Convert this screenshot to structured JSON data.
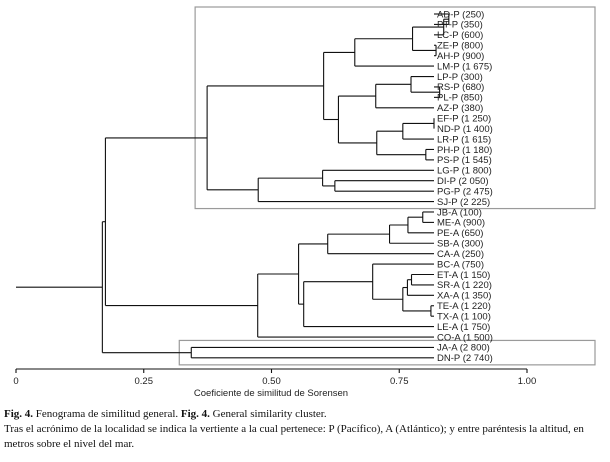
{
  "chart_data": {
    "type": "dendrogram",
    "xlabel": "Coeficiente de similitud de Sorensen",
    "xlim": [
      0,
      1
    ],
    "xticks": [
      {
        "value": 0,
        "label": "0"
      },
      {
        "value": 0.25,
        "label": "0.25"
      },
      {
        "value": 0.5,
        "label": "0.50"
      },
      {
        "value": 0.75,
        "label": "0.75"
      },
      {
        "value": 1,
        "label": "1.00"
      }
    ],
    "leaves": [
      "AD-P (250)",
      "PT-P (350)",
      "LC-P (600)",
      "ZE-P (800)",
      "AH-P (900)",
      "LM-P (1 675)",
      "LP-P (300)",
      "RS-P (680)",
      "PL-P (850)",
      "AZ-P (380)",
      "EF-P (1 250)",
      "ND-P (1 400)",
      "LR-P (1 615)",
      "PH-P (1 180)",
      "PS-P (1 545)",
      "LG-P (1 800)",
      "DI-P (2 050)",
      "PG-P (2 475)",
      "SJ-P (2 225)",
      "JB-A (100)",
      "ME-A (900)",
      "PE-A (650)",
      "SB-A (300)",
      "CA-A (250)",
      "BC-A (750)",
      "ET-A (1 150)",
      "SR-A (1 220)",
      "XA-A (1 350)",
      "TE-A (1 220)",
      "TX-A (1 100)",
      "LE-A (1 750)",
      "CO-A (1 500)",
      "JA-A (2 800)",
      "DN-P (2 740)"
    ],
    "merges": [
      {
        "a": "L0",
        "b": "L1",
        "sim": 0.847
      },
      {
        "a": "N0",
        "b": "L2",
        "sim": 0.837
      },
      {
        "a": "L3",
        "b": "L4",
        "sim": 0.822
      },
      {
        "a": "N1",
        "b": "N2",
        "sim": 0.776
      },
      {
        "a": "N3",
        "b": "L5",
        "sim": 0.663
      },
      {
        "a": "L7",
        "b": "L8",
        "sim": 0.829
      },
      {
        "a": "L6",
        "b": "N5",
        "sim": 0.773
      },
      {
        "a": "N6",
        "b": "L9",
        "sim": 0.704
      },
      {
        "a": "L10",
        "b": "L11",
        "sim": 0.818
      },
      {
        "a": "N8",
        "b": "L12",
        "sim": 0.757
      },
      {
        "a": "L13",
        "b": "L14",
        "sim": 0.802
      },
      {
        "a": "N9",
        "b": "N10",
        "sim": 0.706
      },
      {
        "a": "N7",
        "b": "N11",
        "sim": 0.631
      },
      {
        "a": "N4",
        "b": "N12",
        "sim": 0.602
      },
      {
        "a": "L16",
        "b": "L17",
        "sim": 0.624
      },
      {
        "a": "L15",
        "b": "N14",
        "sim": 0.6
      },
      {
        "a": "N15",
        "b": "L18",
        "sim": 0.474
      },
      {
        "a": "N13",
        "b": "N16",
        "sim": 0.374
      },
      {
        "a": "L19",
        "b": "L20",
        "sim": 0.796
      },
      {
        "a": "N18",
        "b": "L21",
        "sim": 0.767
      },
      {
        "a": "N19",
        "b": "L22",
        "sim": 0.731
      },
      {
        "a": "N20",
        "b": "L23",
        "sim": 0.61
      },
      {
        "a": "L25",
        "b": "L26",
        "sim": 0.774
      },
      {
        "a": "N22",
        "b": "L27",
        "sim": 0.766
      },
      {
        "a": "L28",
        "b": "L29",
        "sim": 0.812
      },
      {
        "a": "N23",
        "b": "N24",
        "sim": 0.757
      },
      {
        "a": "L24",
        "b": "N25",
        "sim": 0.698
      },
      {
        "a": "N26",
        "b": "L30",
        "sim": 0.563
      },
      {
        "a": "N21",
        "b": "N27",
        "sim": 0.553
      },
      {
        "a": "N28",
        "b": "L31",
        "sim": 0.473
      },
      {
        "a": "N17",
        "b": "N29",
        "sim": 0.175
      },
      {
        "a": "L32",
        "b": "L33",
        "sim": 0.343
      },
      {
        "a": "N30",
        "b": "N31",
        "sim": 0.169
      }
    ],
    "highlight_boxes": [
      {
        "first_leaf": 0,
        "last_leaf": 18
      },
      {
        "first_leaf": 32,
        "last_leaf": 33
      }
    ]
  },
  "caption": {
    "fig_es_label": "Fig. 4.",
    "fig_es_text": "Fenograma de similitud general.",
    "fig_en_label": "Fig. 4.",
    "fig_en_text": "General similarity cluster.",
    "note": "Tras el acrónimo de la localidad se indica la vertiente a la cual pertenece: P (Pacífico), A (Atlántico); y entre paréntesis la altitud, en metros sobre el nivel del mar."
  }
}
